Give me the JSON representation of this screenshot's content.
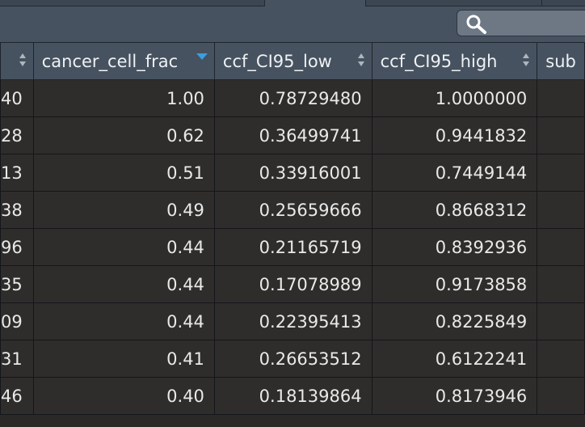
{
  "search": {
    "placeholder": ""
  },
  "table": {
    "columns": [
      {
        "label": ""
      },
      {
        "label": "cancer_cell_frac"
      },
      {
        "label": "ccf_CI95_low"
      },
      {
        "label": "ccf_CI95_high"
      },
      {
        "label": "sub"
      }
    ],
    "rows": [
      [
        "40",
        "1.00",
        "0.78729480",
        "1.0000000",
        ""
      ],
      [
        "28",
        "0.62",
        "0.36499741",
        "0.9441832",
        ""
      ],
      [
        "13",
        "0.51",
        "0.33916001",
        "0.7449144",
        ""
      ],
      [
        "38",
        "0.49",
        "0.25659666",
        "0.8668312",
        ""
      ],
      [
        "96",
        "0.44",
        "0.21165719",
        "0.8392936",
        ""
      ],
      [
        "35",
        "0.44",
        "0.17078989",
        "0.9173858",
        ""
      ],
      [
        "09",
        "0.44",
        "0.22395413",
        "0.8225849",
        ""
      ],
      [
        "31",
        "0.41",
        "0.26653512",
        "0.6122241",
        ""
      ],
      [
        "46",
        "0.40",
        "0.18139864",
        "0.8173946",
        ""
      ]
    ]
  },
  "icons": {
    "search": "search-icon",
    "sort": "sort-both-icon",
    "sort_active": "sort-desc-icon"
  },
  "colors": {
    "header_bg": "#46525f",
    "cell_bg": "#2f2d2b",
    "text": "#e9e9e9",
    "sort_active": "#3a9ee0"
  }
}
